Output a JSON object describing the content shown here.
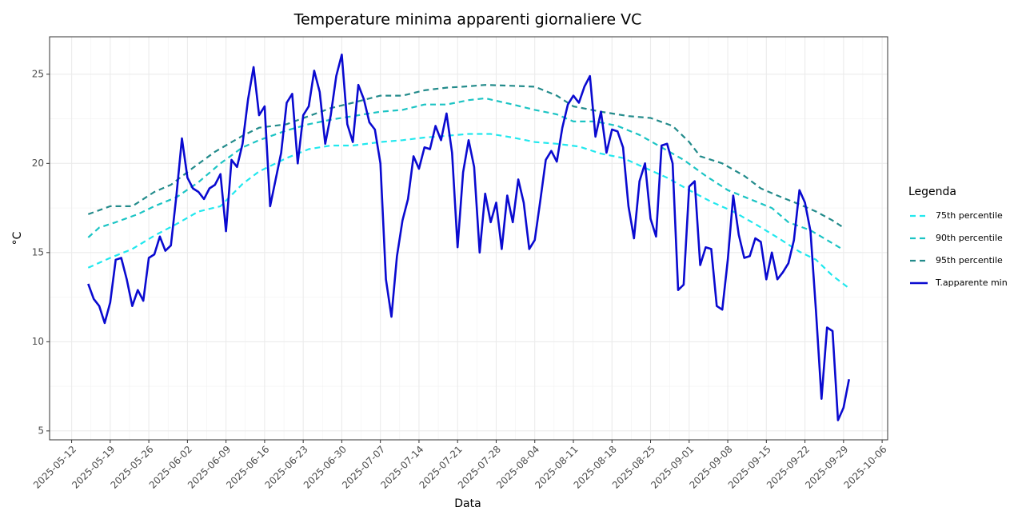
{
  "chart_data": {
    "type": "line",
    "title": "Temperature minima apparenti giornaliere VC",
    "x_label": "Data",
    "y_label": "°C",
    "legend_title": "Legenda",
    "legend": "right",
    "grid": true,
    "xlim": [
      "2025-05-08",
      "2025-10-07"
    ],
    "xticks": [
      "2025-05-12",
      "2025-05-19",
      "2025-05-26",
      "2025-06-02",
      "2025-06-09",
      "2025-06-16",
      "2025-06-23",
      "2025-06-30",
      "2025-07-07",
      "2025-07-14",
      "2025-07-21",
      "2025-07-28",
      "2025-08-04",
      "2025-08-11",
      "2025-08-18",
      "2025-08-25",
      "2025-09-01",
      "2025-09-08",
      "2025-09-15",
      "2025-09-22",
      "2025-09-29",
      "2025-10-06"
    ],
    "ylim": [
      4.5,
      27.1
    ],
    "yticks": [
      5,
      10,
      15,
      20,
      25
    ],
    "x": [
      "2025-05-15",
      "2025-05-16",
      "2025-05-17",
      "2025-05-18",
      "2025-05-19",
      "2025-05-20",
      "2025-05-21",
      "2025-05-22",
      "2025-05-23",
      "2025-05-24",
      "2025-05-25",
      "2025-05-26",
      "2025-05-27",
      "2025-05-28",
      "2025-05-29",
      "2025-05-30",
      "2025-05-31",
      "2025-06-01",
      "2025-06-02",
      "2025-06-03",
      "2025-06-04",
      "2025-06-05",
      "2025-06-06",
      "2025-06-07",
      "2025-06-08",
      "2025-06-09",
      "2025-06-10",
      "2025-06-11",
      "2025-06-12",
      "2025-06-13",
      "2025-06-14",
      "2025-06-15",
      "2025-06-16",
      "2025-06-17",
      "2025-06-18",
      "2025-06-19",
      "2025-06-20",
      "2025-06-21",
      "2025-06-22",
      "2025-06-23",
      "2025-06-24",
      "2025-06-25",
      "2025-06-26",
      "2025-06-27",
      "2025-06-28",
      "2025-06-29",
      "2025-06-30",
      "2025-07-01",
      "2025-07-02",
      "2025-07-03",
      "2025-07-04",
      "2025-07-05",
      "2025-07-06",
      "2025-07-07",
      "2025-07-08",
      "2025-07-09",
      "2025-07-10",
      "2025-07-11",
      "2025-07-12",
      "2025-07-13",
      "2025-07-14",
      "2025-07-15",
      "2025-07-16",
      "2025-07-17",
      "2025-07-18",
      "2025-07-19",
      "2025-07-20",
      "2025-07-21",
      "2025-07-22",
      "2025-07-23",
      "2025-07-24",
      "2025-07-25",
      "2025-07-26",
      "2025-07-27",
      "2025-07-28",
      "2025-07-29",
      "2025-07-30",
      "2025-07-31",
      "2025-08-01",
      "2025-08-02",
      "2025-08-03",
      "2025-08-04",
      "2025-08-05",
      "2025-08-06",
      "2025-08-07",
      "2025-08-08",
      "2025-08-09",
      "2025-08-10",
      "2025-08-11",
      "2025-08-12",
      "2025-08-13",
      "2025-08-14",
      "2025-08-15",
      "2025-08-16",
      "2025-08-17",
      "2025-08-18",
      "2025-08-19",
      "2025-08-20",
      "2025-08-21",
      "2025-08-22",
      "2025-08-23",
      "2025-08-24",
      "2025-08-25",
      "2025-08-26",
      "2025-08-27",
      "2025-08-28",
      "2025-08-29",
      "2025-08-30",
      "2025-08-31",
      "2025-09-01",
      "2025-09-02",
      "2025-09-03",
      "2025-09-04",
      "2025-09-05",
      "2025-09-06",
      "2025-09-07",
      "2025-09-08",
      "2025-09-09",
      "2025-09-10",
      "2025-09-11",
      "2025-09-12",
      "2025-09-13",
      "2025-09-14",
      "2025-09-15",
      "2025-09-16",
      "2025-09-17",
      "2025-09-18",
      "2025-09-19",
      "2025-09-20",
      "2025-09-21",
      "2025-09-22",
      "2025-09-23",
      "2025-09-24",
      "2025-09-25",
      "2025-09-26",
      "2025-09-27",
      "2025-09-28",
      "2025-09-29",
      "2025-09-30"
    ],
    "series": [
      {
        "name": "75th percentile",
        "color": "#22e8ee",
        "dash": true,
        "x": [
          "2025-05-15",
          "2025-05-19",
          "2025-05-23",
          "2025-05-27",
          "2025-05-31",
          "2025-06-04",
          "2025-06-08",
          "2025-06-12",
          "2025-06-15",
          "2025-06-20",
          "2025-06-24",
          "2025-06-28",
          "2025-07-02",
          "2025-07-07",
          "2025-07-11",
          "2025-07-15",
          "2025-07-19",
          "2025-07-23",
          "2025-07-27",
          "2025-07-31",
          "2025-08-04",
          "2025-08-08",
          "2025-08-12",
          "2025-08-16",
          "2025-08-20",
          "2025-08-24",
          "2025-08-28",
          "2025-09-01",
          "2025-09-05",
          "2025-09-09",
          "2025-09-13",
          "2025-09-17",
          "2025-09-21",
          "2025-09-24",
          "2025-09-27",
          "2025-09-30"
        ],
        "values": [
          14.15,
          14.7,
          15.2,
          15.95,
          16.6,
          17.3,
          17.6,
          18.85,
          19.55,
          20.3,
          20.8,
          21.0,
          21.0,
          21.2,
          21.3,
          21.45,
          21.55,
          21.65,
          21.65,
          21.45,
          21.2,
          21.1,
          20.95,
          20.55,
          20.3,
          19.75,
          19.2,
          18.5,
          17.85,
          17.3,
          16.6,
          15.85,
          15.05,
          14.6,
          13.7,
          13.0
        ]
      },
      {
        "name": "90th percentile",
        "color": "#1cc4c4",
        "dash": true,
        "x": [
          "2025-05-15",
          "2025-05-17",
          "2025-05-20",
          "2025-05-24",
          "2025-05-27",
          "2025-05-31",
          "2025-06-04",
          "2025-06-08",
          "2025-06-12",
          "2025-06-15",
          "2025-06-20",
          "2025-06-24",
          "2025-06-28",
          "2025-07-02",
          "2025-07-07",
          "2025-07-11",
          "2025-07-15",
          "2025-07-19",
          "2025-07-23",
          "2025-07-26",
          "2025-07-31",
          "2025-08-04",
          "2025-08-08",
          "2025-08-11",
          "2025-08-15",
          "2025-08-19",
          "2025-08-23",
          "2025-08-27",
          "2025-08-31",
          "2025-09-04",
          "2025-09-08",
          "2025-09-12",
          "2025-09-16",
          "2025-09-19",
          "2025-09-23",
          "2025-09-26",
          "2025-09-29"
        ],
        "values": [
          15.85,
          16.4,
          16.7,
          17.15,
          17.6,
          18.1,
          18.95,
          20.0,
          20.9,
          21.3,
          21.85,
          22.2,
          22.45,
          22.65,
          22.9,
          23.0,
          23.3,
          23.3,
          23.55,
          23.65,
          23.3,
          23.0,
          22.75,
          22.35,
          22.35,
          22.1,
          21.6,
          20.9,
          20.2,
          19.3,
          18.5,
          18.0,
          17.5,
          16.7,
          16.25,
          15.7,
          15.15
        ]
      },
      {
        "name": "95th percentile",
        "color": "#238b8b",
        "dash": true,
        "x": [
          "2025-05-15",
          "2025-05-19",
          "2025-05-23",
          "2025-05-27",
          "2025-05-30",
          "2025-06-03",
          "2025-06-07",
          "2025-06-12",
          "2025-06-15",
          "2025-06-20",
          "2025-06-24",
          "2025-06-28",
          "2025-07-02",
          "2025-07-07",
          "2025-07-11",
          "2025-07-15",
          "2025-07-19",
          "2025-07-22",
          "2025-07-26",
          "2025-07-31",
          "2025-08-04",
          "2025-08-08",
          "2025-08-11",
          "2025-08-16",
          "2025-08-21",
          "2025-08-25",
          "2025-08-29",
          "2025-09-01",
          "2025-09-03",
          "2025-09-07",
          "2025-09-11",
          "2025-09-14",
          "2025-09-17",
          "2025-09-21",
          "2025-09-24",
          "2025-09-27",
          "2025-09-29"
        ],
        "values": [
          17.15,
          17.6,
          17.6,
          18.4,
          18.8,
          19.75,
          20.65,
          21.55,
          22.0,
          22.2,
          22.65,
          23.1,
          23.4,
          23.8,
          23.8,
          24.1,
          24.25,
          24.3,
          24.4,
          24.35,
          24.3,
          23.8,
          23.2,
          22.9,
          22.65,
          22.55,
          22.1,
          21.2,
          20.4,
          20.0,
          19.3,
          18.6,
          18.2,
          17.7,
          17.3,
          16.8,
          16.4
        ]
      },
      {
        "name": "T.apparente min",
        "color": "#0a0ad0",
        "dash": false,
        "values": [
          13.25,
          12.4,
          12.0,
          11.05,
          12.2,
          14.6,
          14.7,
          13.5,
          12.0,
          12.9,
          12.3,
          14.7,
          14.9,
          15.9,
          15.1,
          15.4,
          18.2,
          21.4,
          19.2,
          18.6,
          18.4,
          18.0,
          18.6,
          18.8,
          19.4,
          16.2,
          20.2,
          19.8,
          21.1,
          23.6,
          25.4,
          22.7,
          23.2,
          17.6,
          19.1,
          20.6,
          23.4,
          23.9,
          20.0,
          22.7,
          23.2,
          25.2,
          24.0,
          21.1,
          22.7,
          24.9,
          26.1,
          22.2,
          21.2,
          24.4,
          23.6,
          22.3,
          21.9,
          20.0,
          13.5,
          11.4,
          14.8,
          16.8,
          18.0,
          20.4,
          19.7,
          20.9,
          20.8,
          22.1,
          21.3,
          22.8,
          20.6,
          15.3,
          19.5,
          21.3,
          19.8,
          15.0,
          18.3,
          16.7,
          17.8,
          15.2,
          18.2,
          16.7,
          19.1,
          17.8,
          15.2,
          15.7,
          17.9,
          20.2,
          20.7,
          20.1,
          22.0,
          23.3,
          23.8,
          23.4,
          24.3,
          24.9,
          21.5,
          22.9,
          20.6,
          21.9,
          21.8,
          20.9,
          17.6,
          15.8,
          19.0,
          20.0,
          16.9,
          15.9,
          21.0,
          21.1,
          20.0,
          12.9,
          13.2,
          18.7,
          19.0,
          14.3,
          15.3,
          15.2,
          12.0,
          11.8,
          14.6,
          18.2,
          16.0,
          14.7,
          14.8,
          15.8,
          15.6,
          13.5,
          15.0,
          13.5,
          13.9,
          14.4,
          15.7,
          18.5,
          17.8,
          16.2,
          11.7,
          6.8,
          10.8,
          10.6,
          5.6,
          6.3,
          7.9
        ]
      }
    ]
  }
}
